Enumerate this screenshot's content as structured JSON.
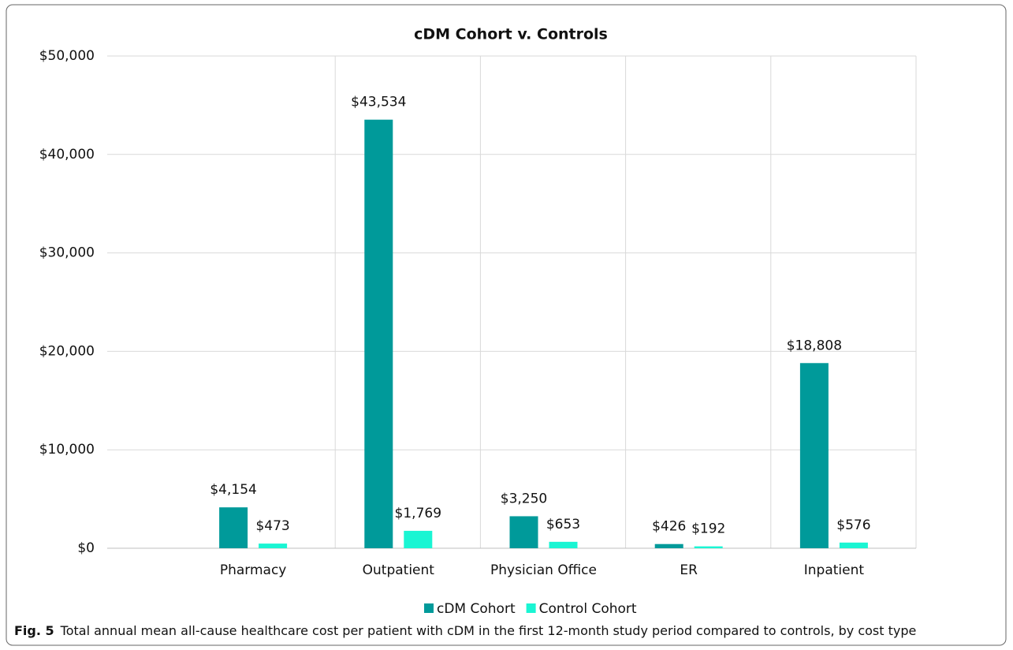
{
  "chart_data": {
    "type": "bar",
    "title": "cDM Cohort v. Controls",
    "categories": [
      "Pharmacy",
      "Outpatient",
      "Physician Office",
      "ER",
      "Inpatient"
    ],
    "series": [
      {
        "name": "cDM Cohort",
        "color": "#009a9a",
        "values": [
          4154,
          43534,
          3250,
          426,
          18808
        ],
        "value_labels": [
          "$4,154",
          "$43,534",
          "$3,250",
          "$426",
          "$18,808"
        ]
      },
      {
        "name": "Control Cohort",
        "color": "#1af5d3",
        "values": [
          473,
          1769,
          653,
          192,
          576
        ],
        "value_labels": [
          "$473",
          "$1,769",
          "$653",
          "$192",
          "$576"
        ]
      }
    ],
    "ylim": [
      0,
      50000
    ],
    "yticks": [
      {
        "value": 0,
        "label": "$0"
      },
      {
        "value": 10000,
        "label": "$10,000"
      },
      {
        "value": 20000,
        "label": "$20,000"
      },
      {
        "value": 30000,
        "label": "$30,000"
      },
      {
        "value": 40000,
        "label": "$40,000"
      },
      {
        "value": 50000,
        "label": "$50,000"
      }
    ],
    "grid": true,
    "legend": "bottom"
  },
  "caption": {
    "label": "Fig. 5",
    "text": "Total annual mean all-cause healthcare cost per patient with cDM in the first 12-month study period compared to controls, by cost type"
  }
}
